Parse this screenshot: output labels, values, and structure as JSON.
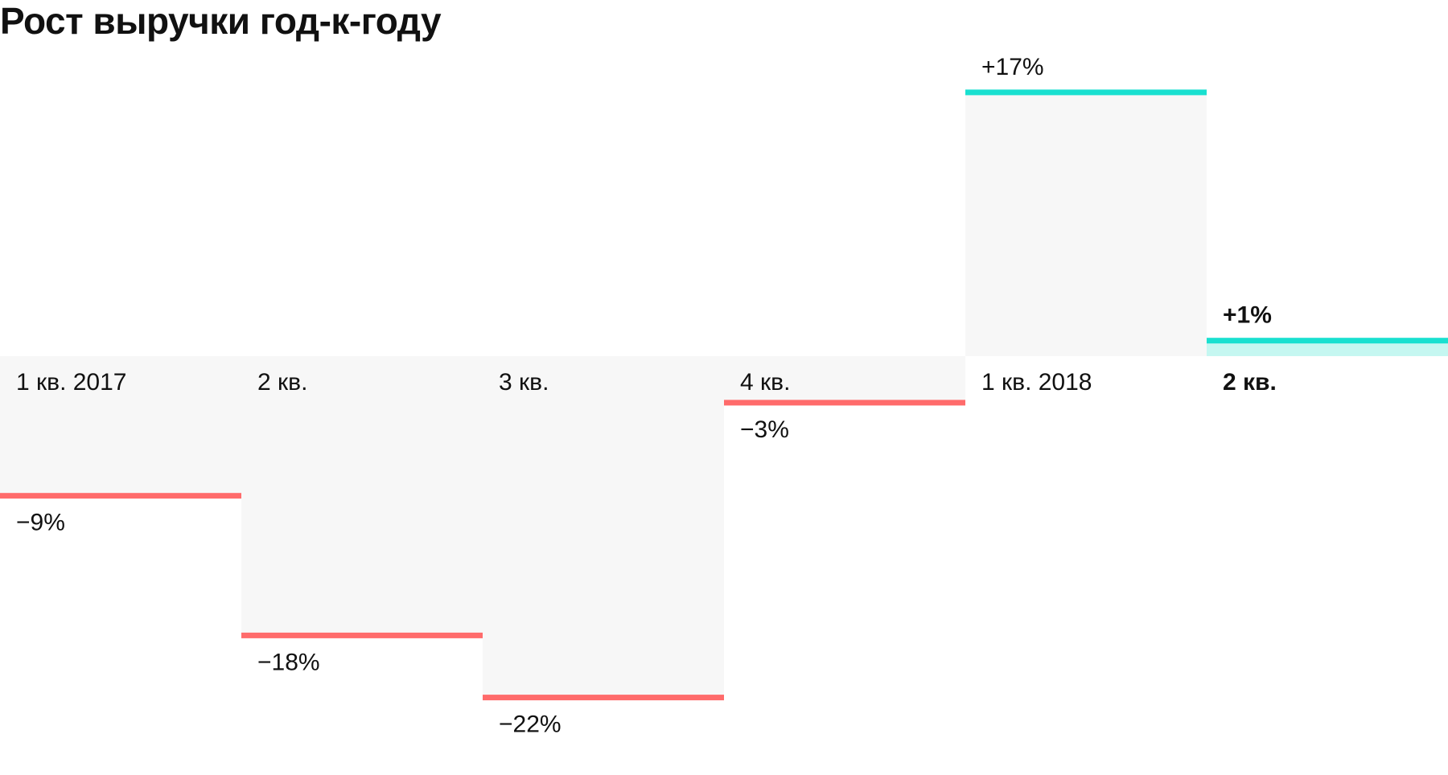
{
  "title": "Рост выручки год-к-году",
  "colors": {
    "positive": "#19e0d0",
    "positive_fill_current": "#c5f7f1",
    "negative": "#ff6b6b",
    "background_fill": "#f7f7f7",
    "text": "#111111"
  },
  "chart_data": {
    "type": "bar",
    "title": "Рост выручки год-к-году",
    "xlabel": "",
    "ylabel": "",
    "unit": "%",
    "ylim": [
      -22,
      17
    ],
    "grid": false,
    "legend": "none",
    "categories": [
      "1 кв. 2017",
      "2 кв.",
      "3 кв.",
      "4 кв.",
      "1 кв. 2018",
      "2 кв."
    ],
    "values": [
      -9,
      -18,
      -22,
      -3,
      17,
      1
    ],
    "value_labels": [
      "−9%",
      "−18%",
      "−22%",
      "−3%",
      "+17%",
      "+1%"
    ],
    "highlight_index": 5
  }
}
